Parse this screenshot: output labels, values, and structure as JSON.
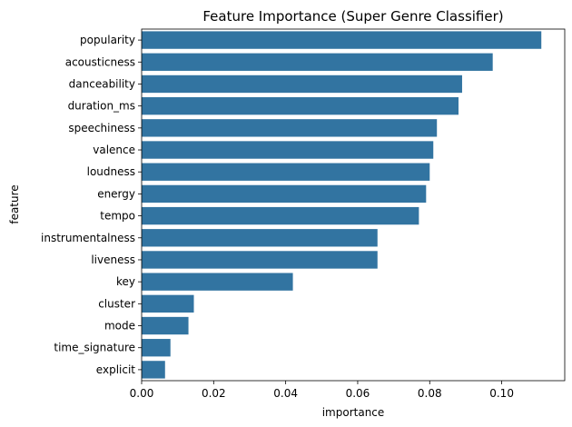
{
  "chart_data": {
    "type": "bar",
    "orientation": "horizontal",
    "title": "Feature Importance (Super Genre Classifier)",
    "xlabel": "importance",
    "ylabel": "feature",
    "categories": [
      "popularity",
      "acousticness",
      "danceability",
      "duration_ms",
      "speechiness",
      "valence",
      "loudness",
      "energy",
      "tempo",
      "instrumentalness",
      "liveness",
      "key",
      "cluster",
      "mode",
      "time_signature",
      "explicit"
    ],
    "values": [
      0.111,
      0.0975,
      0.089,
      0.088,
      0.082,
      0.081,
      0.08,
      0.079,
      0.077,
      0.0655,
      0.0655,
      0.042,
      0.0145,
      0.013,
      0.008,
      0.0065
    ],
    "xlim": [
      0,
      0.1175
    ],
    "xticks": [
      0.0,
      0.02,
      0.04,
      0.06,
      0.08,
      0.1
    ],
    "xtick_labels": [
      "0.00",
      "0.02",
      "0.04",
      "0.06",
      "0.08",
      "0.10"
    ],
    "grid": false,
    "bar_color": "#3274a1"
  }
}
